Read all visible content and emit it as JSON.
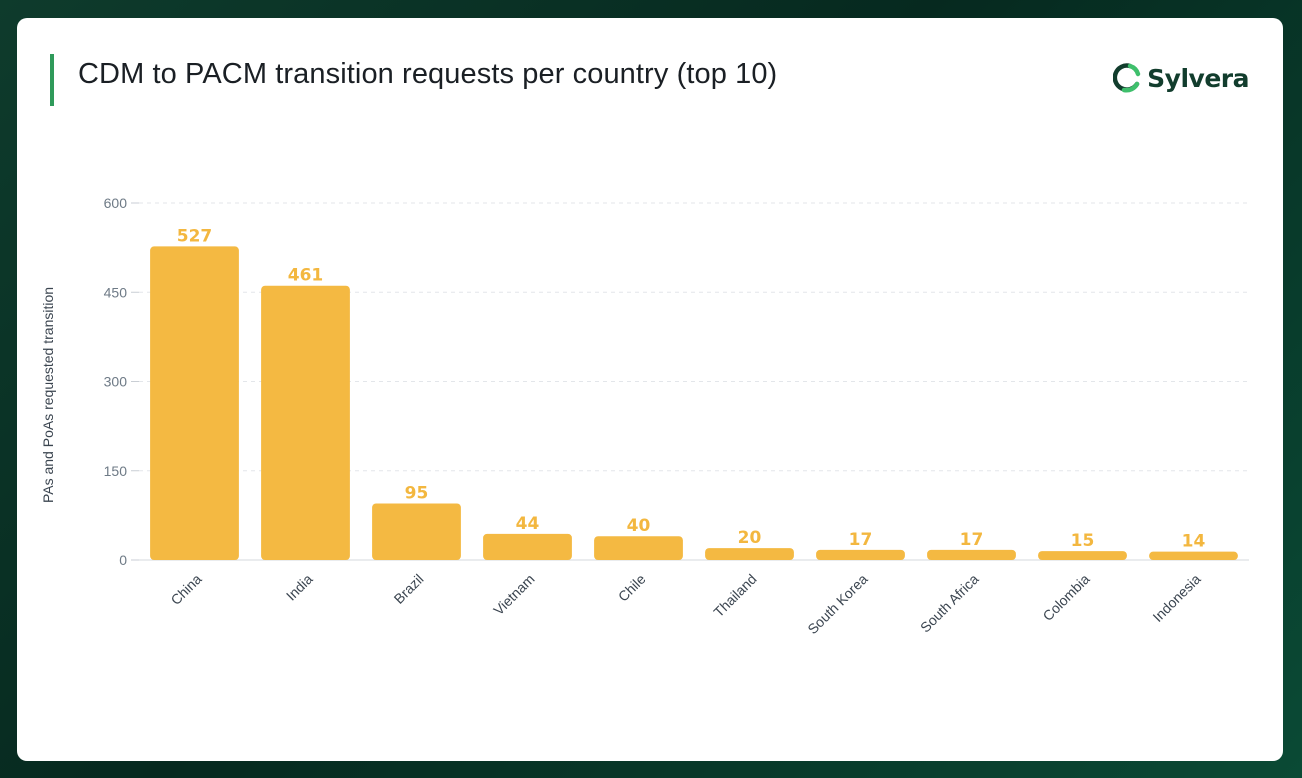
{
  "header": {
    "title": "CDM to PACM transition requests per country (top 10)",
    "brand_name": "Sylvera",
    "brand_icon": "sylvera-logo-icon"
  },
  "colors": {
    "bar": "#f4b942",
    "value_label": "#f3b73f",
    "accent": "#2f9a5a",
    "gridline": "#e3e6ea"
  },
  "chart_data": {
    "type": "bar",
    "title": "CDM to PACM transition requests per country (top 10)",
    "xlabel": "",
    "ylabel": "PAs and PoAs requested transition",
    "categories": [
      "China",
      "India",
      "Brazil",
      "Vietnam",
      "Chile",
      "Thailand",
      "South Korea",
      "South Africa",
      "Colombia",
      "Indonesia"
    ],
    "values": [
      527,
      461,
      95,
      44,
      40,
      20,
      17,
      17,
      15,
      14
    ],
    "value_labels": [
      "527",
      "461",
      "95",
      "44",
      "40",
      "20",
      "17",
      "17",
      "15",
      "14"
    ],
    "yticks": [
      0,
      150,
      300,
      450,
      600
    ],
    "ytick_labels": [
      "0",
      "150",
      "300",
      "450",
      "600"
    ],
    "ylim": [
      0,
      600
    ],
    "grid": true,
    "legend": "none"
  }
}
